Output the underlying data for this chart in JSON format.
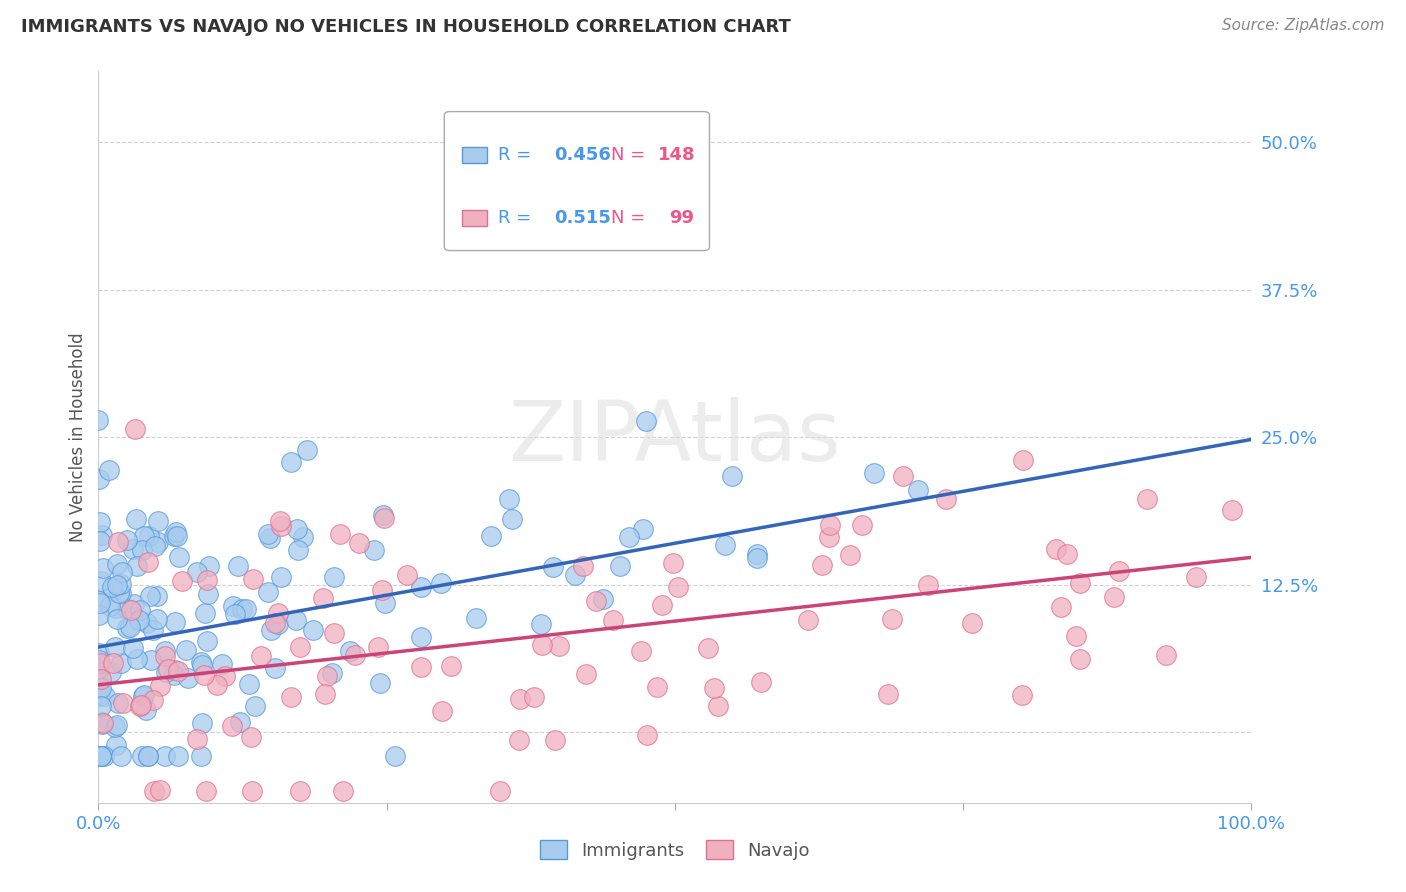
{
  "title": "IMMIGRANTS VS NAVAJO NO VEHICLES IN HOUSEHOLD CORRELATION CHART",
  "source": "Source: ZipAtlas.com",
  "ylabel": "No Vehicles in Household",
  "xlim": [
    0.0,
    1.0
  ],
  "ylim": [
    -0.06,
    0.56
  ],
  "ytick_vals": [
    0.0,
    0.125,
    0.25,
    0.375,
    0.5
  ],
  "ytick_labels": [
    "",
    "12.5%",
    "25.0%",
    "37.5%",
    "50.0%"
  ],
  "background_color": "#ffffff",
  "grid_color": "#cccccc",
  "immigrants_face_color": "#A8CCEE",
  "immigrants_edge_color": "#5599DD",
  "navajo_face_color": "#F0B0C0",
  "navajo_edge_color": "#E07090",
  "immigrants_line_color": "#3366BB",
  "navajo_line_color": "#CC4477",
  "legend_R_color": "#4499EE",
  "legend_N_color": "#EE5588",
  "R_immigrants": 0.456,
  "N_immigrants": 148,
  "R_navajo": 0.515,
  "N_navajo": 99,
  "imm_line_y0": 0.072,
  "imm_line_y1": 0.248,
  "nav_line_y0": 0.04,
  "nav_line_y1": 0.148
}
